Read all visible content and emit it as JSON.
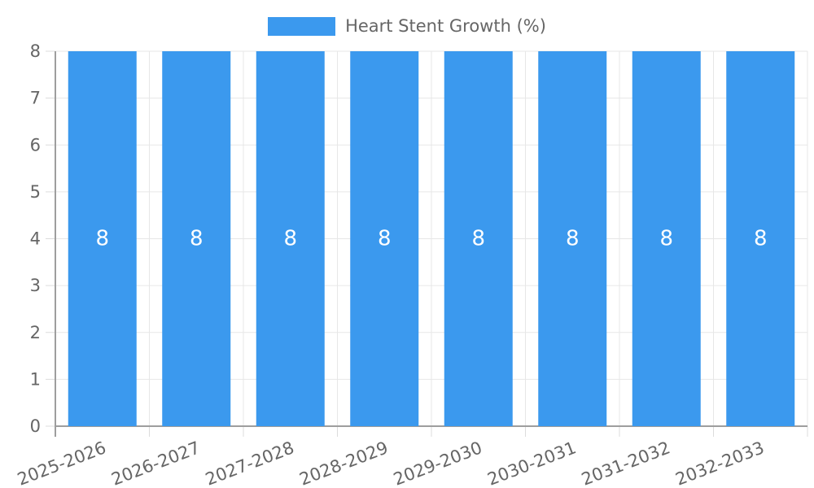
{
  "chart_data": {
    "type": "bar",
    "title": "",
    "legend": "Heart Stent Growth (%)",
    "legend_position": "top",
    "categories": [
      "2025-2026",
      "2026-2027",
      "2027-2028",
      "2028-2029",
      "2029-2030",
      "2030-2031",
      "2031-2032",
      "2032-2033"
    ],
    "series": [
      {
        "name": "Heart Stent Growth (%)",
        "values": [
          8,
          8,
          8,
          8,
          8,
          8,
          8,
          8
        ]
      }
    ],
    "bar_value_labels": [
      "8",
      "8",
      "8",
      "8",
      "8",
      "8",
      "8",
      "8"
    ],
    "xlabel": "",
    "ylabel": "",
    "ylim": [
      0,
      8
    ],
    "yticks": [
      0,
      1,
      2,
      3,
      4,
      5,
      6,
      7,
      8
    ],
    "grid": true,
    "x_label_rotation_deg": -21,
    "bar_label_color": "#ffffff",
    "colors": {
      "bar": "#3B99EE",
      "grid": "#e7e7e7",
      "tick": "#dcdcdc",
      "axis": "#9e9e9e",
      "text": "#666666",
      "background": "#ffffff"
    }
  }
}
